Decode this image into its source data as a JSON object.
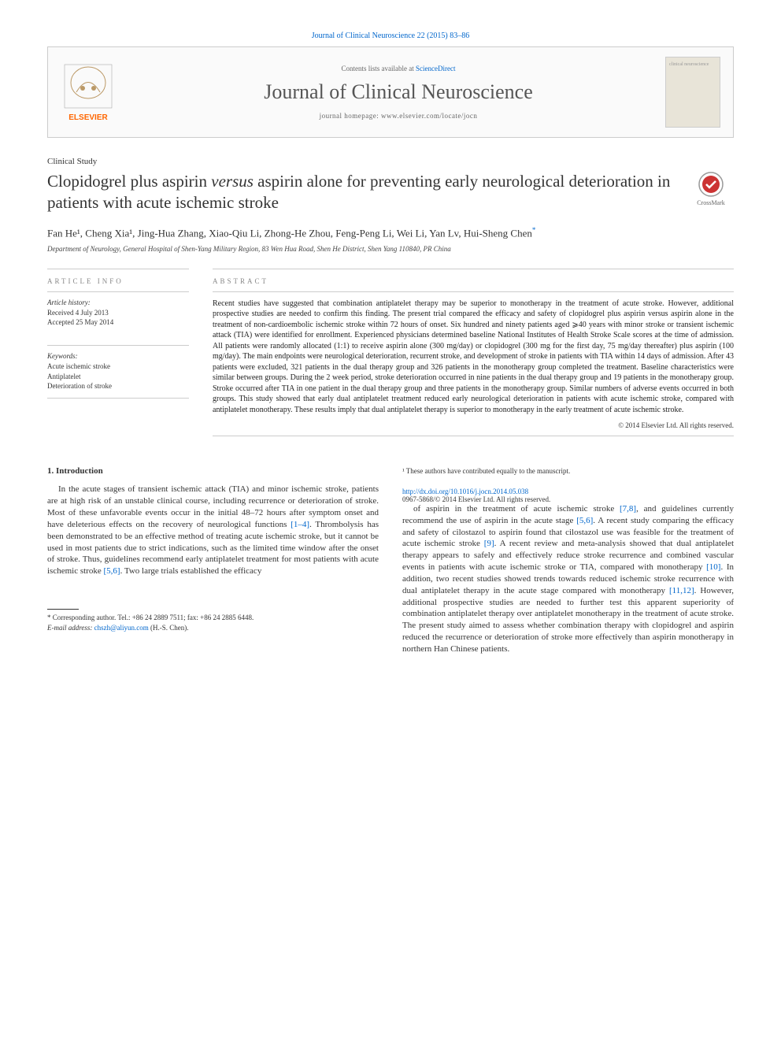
{
  "citation": "Journal of Clinical Neuroscience 22 (2015) 83–86",
  "header": {
    "contents_prefix": "Contents lists available at ",
    "contents_link": "ScienceDirect",
    "journal_name": "Journal of Clinical Neuroscience",
    "homepage_prefix": "journal homepage: ",
    "homepage_url": "www.elsevier.com/locate/jocn",
    "publisher": "ELSEVIER",
    "cover_text": "clinical neuroscience"
  },
  "article": {
    "type": "Clinical Study",
    "title_part1": "Clopidogrel plus aspirin ",
    "title_italic": "versus",
    "title_part2": " aspirin alone for preventing early neurological deterioration in patients with acute ischemic stroke",
    "crossmark_label": "CrossMark",
    "authors": "Fan He¹, Cheng Xia¹, Jing-Hua Zhang, Xiao-Qiu Li, Zhong-He Zhou, Feng-Peng Li, Wei Li, Yan Lv, Hui-Sheng Chen",
    "corr_mark": "*",
    "affiliation": "Department of Neurology, General Hospital of Shen-Yang Military Region, 83 Wen Hua Road, Shen He District, Shen Yang 110840, PR China"
  },
  "info": {
    "label": "ARTICLE INFO",
    "history_label": "Article history:",
    "received": "Received 4 July 2013",
    "accepted": "Accepted 25 May 2014",
    "keywords_label": "Keywords:",
    "keywords": [
      "Acute ischemic stroke",
      "Antiplatelet",
      "Deterioration of stroke"
    ]
  },
  "abstract": {
    "label": "ABSTRACT",
    "text": "Recent studies have suggested that combination antiplatelet therapy may be superior to monotherapy in the treatment of acute stroke. However, additional prospective studies are needed to confirm this finding. The present trial compared the efficacy and safety of clopidogrel plus aspirin versus aspirin alone in the treatment of non-cardioembolic ischemic stroke within 72 hours of onset. Six hundred and ninety patients aged ⩾40 years with minor stroke or transient ischemic attack (TIA) were identified for enrollment. Experienced physicians determined baseline National Institutes of Health Stroke Scale scores at the time of admission. All patients were randomly allocated (1:1) to receive aspirin alone (300 mg/day) or clopidogrel (300 mg for the first day, 75 mg/day thereafter) plus aspirin (100 mg/day). The main endpoints were neurological deterioration, recurrent stroke, and development of stroke in patients with TIA within 14 days of admission. After 43 patients were excluded, 321 patients in the dual therapy group and 326 patients in the monotherapy group completed the treatment. Baseline characteristics were similar between groups. During the 2 week period, stroke deterioration occurred in nine patients in the dual therapy group and 19 patients in the monotherapy group. Stroke occurred after TIA in one patient in the dual therapy group and three patients in the monotherapy group. Similar numbers of adverse events occurred in both groups. This study showed that early dual antiplatelet treatment reduced early neurological deterioration in patients with acute ischemic stroke, compared with antiplatelet monotherapy. These results imply that dual antiplatelet therapy is superior to monotherapy in the early treatment of acute ischemic stroke.",
    "copyright": "© 2014 Elsevier Ltd. All rights reserved."
  },
  "body": {
    "heading": "1. Introduction",
    "col1": "In the acute stages of transient ischemic attack (TIA) and minor ischemic stroke, patients are at high risk of an unstable clinical course, including recurrence or deterioration of stroke. Most of these unfavorable events occur in the initial 48–72 hours after symptom onset and have deleterious effects on the recovery of neurological functions [1–4]. Thrombolysis has been demonstrated to be an effective method of treating acute ischemic stroke, but it cannot be used in most patients due to strict indications, such as the limited time window after the onset of stroke. Thus, guidelines recommend early antiplatelet treatment for most patients with acute ischemic stroke [5,6]. Two large trials established the efficacy",
    "col2": "of aspirin in the treatment of acute ischemic stroke [7,8], and guidelines currently recommend the use of aspirin in the acute stage [5,6]. A recent study comparing the efficacy and safety of cilostazol to aspirin found that cilostazol use was feasible for the treatment of acute ischemic stroke [9]. A recent review and meta-analysis showed that dual antiplatelet therapy appears to safely and effectively reduce stroke recurrence and combined vascular events in patients with acute ischemic stroke or TIA, compared with monotherapy [10]. In addition, two recent studies showed trends towards reduced ischemic stroke recurrence with dual antiplatelet therapy in the acute stage compared with monotherapy [11,12]. However, additional prospective studies are needed to further test this apparent superiority of combination antiplatelet therapy over antiplatelet monotherapy in the treatment of acute stroke. The present study aimed to assess whether combination therapy with clopidogrel and aspirin reduced the recurrence or deterioration of stroke more effectively than aspirin monotherapy in northern Han Chinese patients."
  },
  "footnotes": {
    "corr": "* Corresponding author. Tel.: +86 24 2889 7511; fax: +86 24 2885 6448.",
    "email_label": "E-mail address: ",
    "email": "chszh@aliyun.com",
    "email_suffix": " (H.-S. Chen).",
    "equal": "¹ These authors have contributed equally to the manuscript."
  },
  "footer": {
    "doi": "http://dx.doi.org/10.1016/j.jocn.2014.05.038",
    "issn": "0967-5868/© 2014 Elsevier Ltd. All rights reserved."
  },
  "colors": {
    "link": "#0066cc",
    "text": "#333333",
    "border": "#cccccc",
    "elsevier_orange": "#ff6600"
  }
}
